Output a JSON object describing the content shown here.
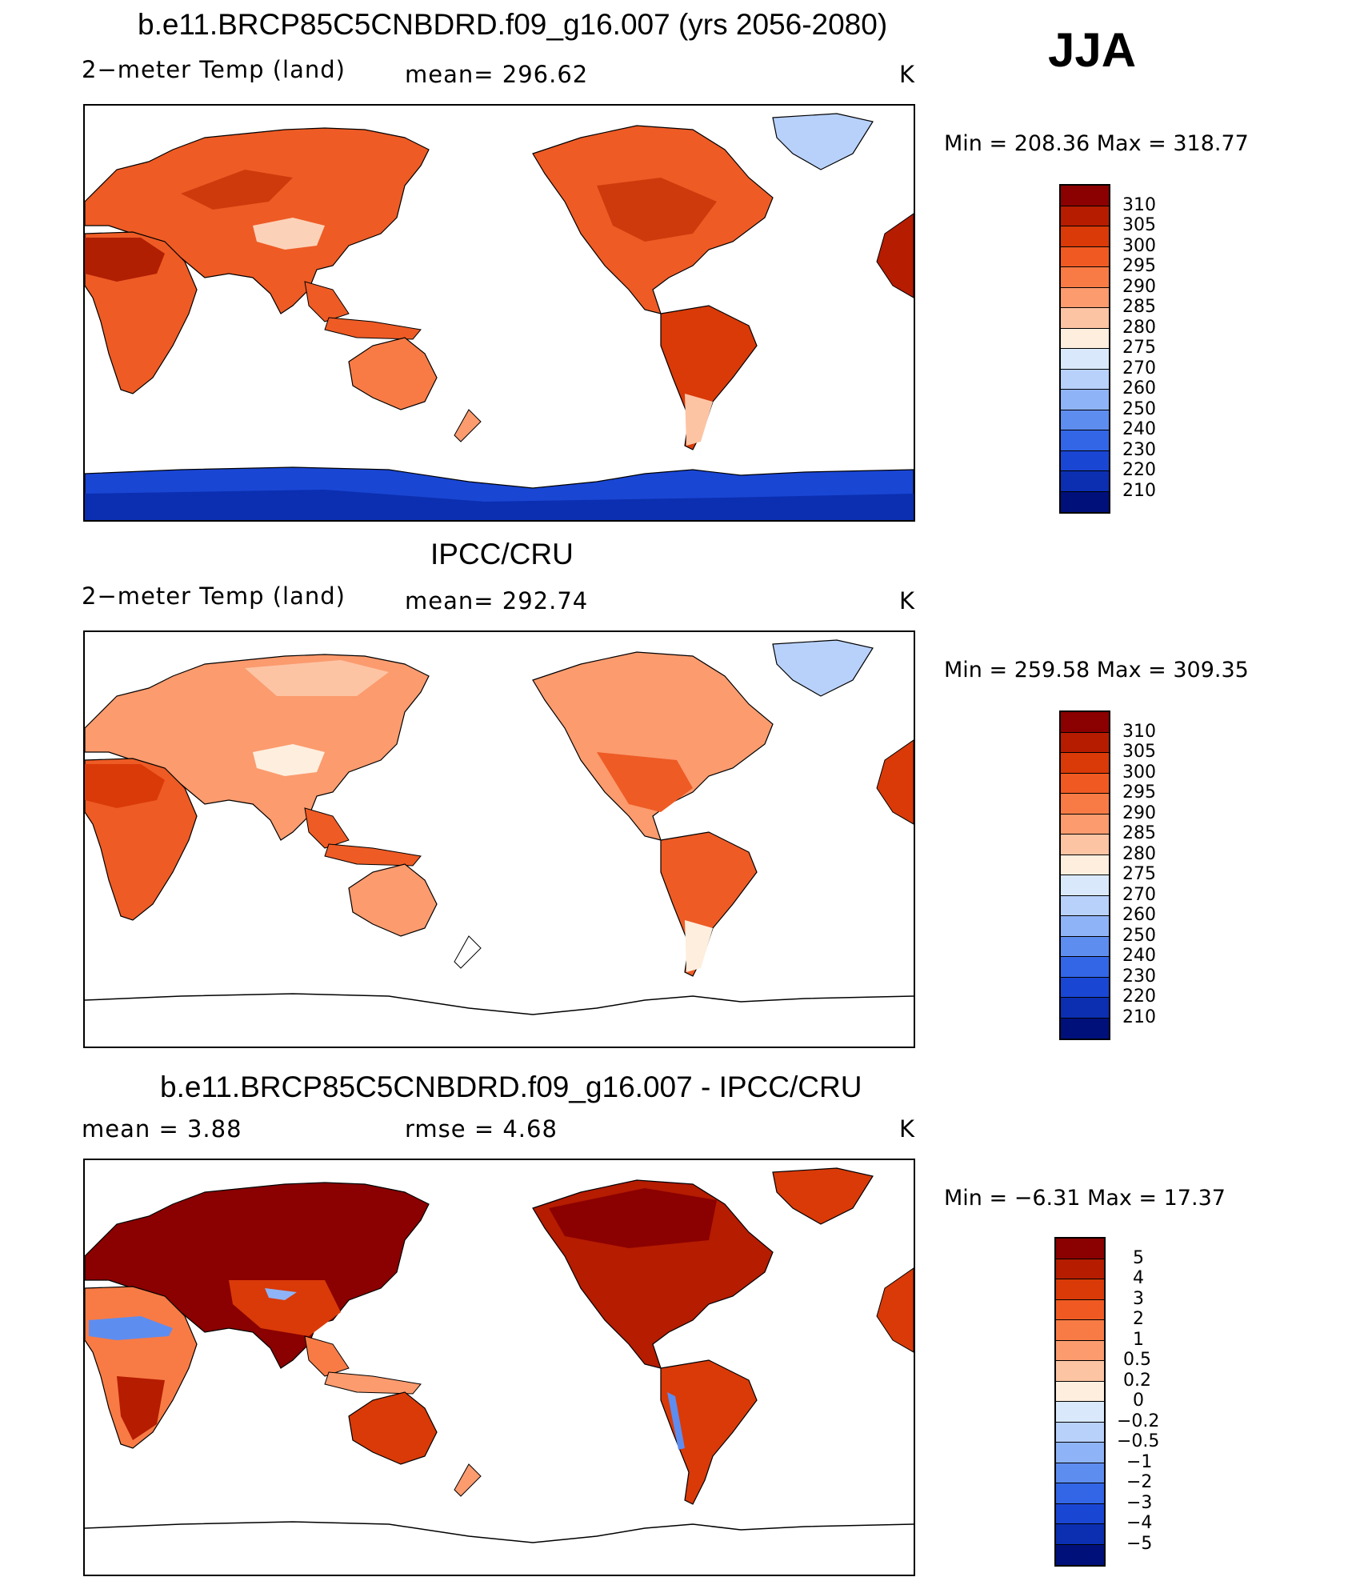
{
  "season": "JJA",
  "panels": [
    {
      "title": "b.e11.BRCP85C5CNBDRD.f09_g16.007 (yrs 2056-2080)",
      "left_label": "2−meter Temp (land)",
      "mid_label": "mean=  296.62",
      "unit": "K",
      "minmax": "Min  =  208.36  Max  =  318.77",
      "colorbar": {
        "labels": [
          "310",
          "305",
          "300",
          "295",
          "290",
          "285",
          "280",
          "275",
          "270",
          "260",
          "250",
          "240",
          "230",
          "220",
          "210"
        ],
        "colors": [
          "#8b0000",
          "#b51c00",
          "#d93a08",
          "#f05a22",
          "#f87b45",
          "#fb9b6e",
          "#fdc4a4",
          "#feeede",
          "#d9e9fb",
          "#b8d1fb",
          "#8fb3f7",
          "#5e8df0",
          "#3366e6",
          "#1a46d4",
          "#0b2fb0",
          "#00107a"
        ]
      }
    },
    {
      "title": "IPCC/CRU",
      "left_label": "2−meter Temp (land)",
      "mid_label": "mean=  292.74",
      "unit": "K",
      "minmax": "Min  =  259.58  Max  =  309.35",
      "colorbar": {
        "labels": [
          "310",
          "305",
          "300",
          "295",
          "290",
          "285",
          "280",
          "275",
          "270",
          "260",
          "250",
          "240",
          "230",
          "220",
          "210"
        ],
        "colors": [
          "#8b0000",
          "#b51c00",
          "#d93a08",
          "#f05a22",
          "#f87b45",
          "#fb9b6e",
          "#fdc4a4",
          "#feeede",
          "#d9e9fb",
          "#b8d1fb",
          "#8fb3f7",
          "#5e8df0",
          "#3366e6",
          "#1a46d4",
          "#0b2fb0",
          "#00107a"
        ]
      }
    },
    {
      "title": "b.e11.BRCP85C5CNBDRD.f09_g16.007 - IPCC/CRU",
      "left_label": "mean =      3.88",
      "mid_label": "rmse =      4.68",
      "unit": "K",
      "minmax": "Min  =    −6.31  Max  =     17.37",
      "colorbar": {
        "labels": [
          "5",
          "4",
          "3",
          "2",
          "1",
          "0.5",
          "0.2",
          "0",
          "−0.2",
          "−0.5",
          "−1",
          "−2",
          "−3",
          "−4",
          "−5"
        ],
        "colors": [
          "#8b0000",
          "#b51c00",
          "#d93a08",
          "#f05a22",
          "#f87b45",
          "#fb9b6e",
          "#fdc4a4",
          "#feeede",
          "#d9e9fb",
          "#b8d1fb",
          "#8fb3f7",
          "#5e8df0",
          "#3366e6",
          "#1a46d4",
          "#0b2fb0",
          "#00107a"
        ]
      }
    }
  ]
}
